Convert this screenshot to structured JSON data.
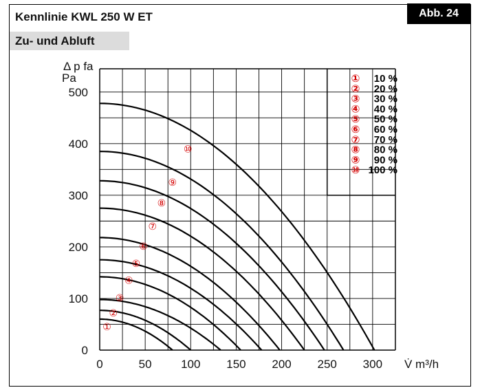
{
  "header": {
    "title": "Kennlinie KWL 250 W ET",
    "badge": "Abb. 24",
    "subtitle": "Zu- und Abluft"
  },
  "colors": {
    "curve": "#000000",
    "marker": "#d40000",
    "grid": "#000000",
    "subtitle_bg": "#dcdcdc"
  },
  "chart_data": {
    "type": "line",
    "title": "Kennlinie KWL 250 W ET",
    "subtitle": "Zu- und Abluft",
    "ylabel_line1": "Δ p fa",
    "ylabel_line2": "Pa",
    "xlabel": "V̇ m³/h",
    "xlim": [
      0,
      300
    ],
    "ylim": [
      0,
      500
    ],
    "x_ticks": [
      "0",
      "50",
      "100",
      "150",
      "200",
      "250",
      "300"
    ],
    "y_ticks": [
      "0",
      "100",
      "200",
      "300",
      "400",
      "500"
    ],
    "grid": true,
    "series": [
      {
        "name": "10 %",
        "marker": "①",
        "y0": 60,
        "x0": 80
      },
      {
        "name": "20 %",
        "marker": "②",
        "y0": 77,
        "x0": 100
      },
      {
        "name": "30 %",
        "marker": "③",
        "y0": 98,
        "x0": 133
      },
      {
        "name": "40 %",
        "marker": "④",
        "y0": 142,
        "x0": 155
      },
      {
        "name": "50 %",
        "marker": "⑤",
        "y0": 175,
        "x0": 178
      },
      {
        "name": "60 %",
        "marker": "⑥",
        "y0": 218,
        "x0": 198
      },
      {
        "name": "70 %",
        "marker": "⑦",
        "y0": 275,
        "x0": 225
      },
      {
        "name": "80 %",
        "marker": "⑧",
        "y0": 328,
        "x0": 247
      },
      {
        "name": "90 %",
        "marker": "⑨",
        "y0": 385,
        "x0": 268
      },
      {
        "name": "100 %",
        "marker": "⑩",
        "y0": 478,
        "x0": 302
      }
    ],
    "markers": [
      {
        "label": "①",
        "x": 8,
        "y": 45
      },
      {
        "label": "②",
        "x": 15,
        "y": 72
      },
      {
        "label": "③",
        "x": 22,
        "y": 101
      },
      {
        "label": "④",
        "x": 32,
        "y": 135
      },
      {
        "label": "⑤",
        "x": 40,
        "y": 168
      },
      {
        "label": "⑥",
        "x": 48,
        "y": 201
      },
      {
        "label": "⑦",
        "x": 58,
        "y": 240
      },
      {
        "label": "⑧",
        "x": 68,
        "y": 285
      },
      {
        "label": "⑨",
        "x": 80,
        "y": 325
      },
      {
        "label": "⑩",
        "x": 97,
        "y": 390
      }
    ],
    "legend_placement": "top-right"
  }
}
